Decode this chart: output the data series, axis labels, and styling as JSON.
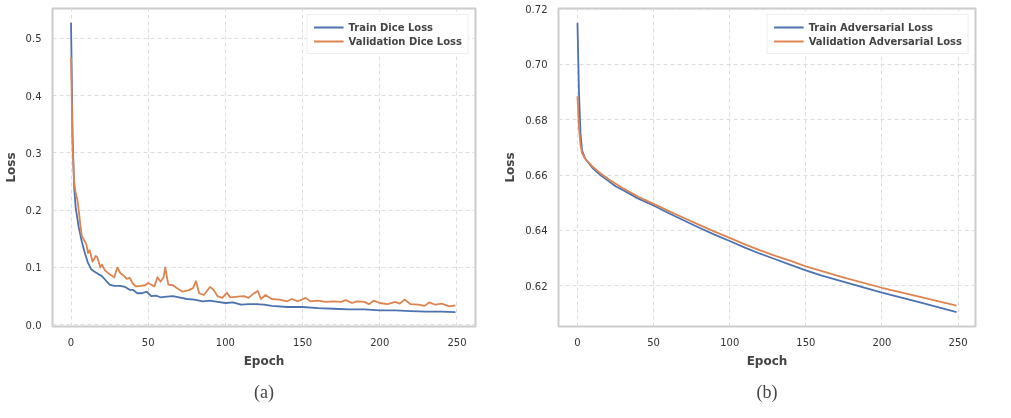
{
  "chart_data": [
    {
      "type": "line",
      "xlabel": "Epoch",
      "ylabel": "Loss",
      "xlim": [
        -12,
        262
      ],
      "ylim": [
        -0.003,
        0.552
      ],
      "xticks": [
        0,
        50,
        100,
        150,
        200,
        250
      ],
      "yticks": [
        {
          "value": 0,
          "label": "0.0"
        },
        0.1,
        0.2,
        0.3,
        0.4,
        0.5
      ],
      "grid": true,
      "legend": "top right",
      "annotations": [
        "(a)"
      ],
      "series": [
        {
          "name": "Train Dice Loss",
          "color": "#4c72b0",
          "x": [
            0,
            1,
            2,
            3,
            5,
            7,
            9,
            11,
            13,
            15,
            18,
            20,
            22,
            25,
            28,
            32,
            35,
            38,
            40,
            43,
            46,
            49,
            52,
            55,
            58,
            62,
            66,
            70,
            75,
            80,
            85,
            90,
            95,
            100,
            105,
            110,
            115,
            120,
            125,
            130,
            140,
            150,
            160,
            170,
            180,
            190,
            200,
            210,
            220,
            230,
            240,
            249
          ],
          "values": [
            0.527,
            0.33,
            0.24,
            0.205,
            0.17,
            0.145,
            0.125,
            0.108,
            0.097,
            0.093,
            0.088,
            0.085,
            0.079,
            0.07,
            0.068,
            0.068,
            0.066,
            0.061,
            0.061,
            0.055,
            0.055,
            0.058,
            0.05,
            0.051,
            0.048,
            0.049,
            0.05,
            0.048,
            0.045,
            0.044,
            0.041,
            0.042,
            0.04,
            0.038,
            0.039,
            0.035,
            0.036,
            0.036,
            0.035,
            0.033,
            0.031,
            0.031,
            0.029,
            0.028,
            0.027,
            0.027,
            0.025,
            0.025,
            0.024,
            0.023,
            0.023,
            0.022
          ]
        },
        {
          "name": "Validation Dice Loss",
          "color": "#dd8452",
          "x": [
            0,
            1,
            2,
            3,
            4,
            5,
            6,
            7,
            8,
            10,
            11,
            12,
            14,
            16,
            17,
            19,
            20,
            22,
            25,
            28,
            30,
            32,
            34,
            36,
            38,
            40,
            42,
            45,
            48,
            50,
            52,
            54,
            56,
            58,
            60,
            61,
            63,
            66,
            68,
            72,
            76,
            79,
            81,
            83,
            86,
            90,
            92,
            95,
            98,
            101,
            103,
            108,
            112,
            115,
            118,
            121,
            123,
            126,
            130,
            135,
            140,
            143,
            147,
            152,
            155,
            160,
            165,
            170,
            175,
            178,
            182,
            185,
            190,
            193,
            196,
            200,
            205,
            210,
            213,
            216,
            220,
            225,
            229,
            232,
            236,
            240,
            245,
            249
          ],
          "values": [
            0.467,
            0.31,
            0.25,
            0.23,
            0.22,
            0.2,
            0.175,
            0.155,
            0.15,
            0.14,
            0.125,
            0.13,
            0.11,
            0.12,
            0.118,
            0.1,
            0.105,
            0.095,
            0.088,
            0.083,
            0.1,
            0.09,
            0.086,
            0.08,
            0.082,
            0.072,
            0.067,
            0.068,
            0.069,
            0.073,
            0.07,
            0.067,
            0.083,
            0.075,
            0.083,
            0.1,
            0.07,
            0.069,
            0.065,
            0.058,
            0.06,
            0.064,
            0.076,
            0.055,
            0.052,
            0.066,
            0.062,
            0.05,
            0.047,
            0.056,
            0.048,
            0.049,
            0.05,
            0.047,
            0.054,
            0.059,
            0.045,
            0.052,
            0.045,
            0.044,
            0.041,
            0.045,
            0.041,
            0.047,
            0.041,
            0.042,
            0.04,
            0.041,
            0.04,
            0.043,
            0.038,
            0.041,
            0.04,
            0.036,
            0.042,
            0.038,
            0.036,
            0.04,
            0.037,
            0.044,
            0.036,
            0.035,
            0.033,
            0.039,
            0.035,
            0.037,
            0.032,
            0.034
          ]
        }
      ]
    },
    {
      "type": "line",
      "xlabel": "Epoch",
      "ylabel": "Loss",
      "xlim": [
        -12.45,
        261.45
      ],
      "ylim": [
        0.6053,
        0.7202
      ],
      "xticks": [
        0,
        50,
        100,
        150,
        200,
        250
      ],
      "yticks": [
        0.62,
        0.64,
        0.66,
        0.68,
        {
          "value": 0.7,
          "label": "0.70"
        },
        0.72
      ],
      "grid": true,
      "legend": "top right",
      "annotations": [
        "(b)"
      ],
      "series": [
        {
          "name": "Train Adversarial Loss",
          "color": "#4c72b0",
          "x": [
            0,
            1,
            2,
            3,
            5,
            10,
            15,
            20,
            25,
            30,
            40,
            50,
            60,
            70,
            80,
            90,
            100,
            110,
            120,
            130,
            140,
            150,
            160,
            175,
            200,
            225,
            249
          ],
          "values": [
            0.715,
            0.69,
            0.675,
            0.669,
            0.666,
            0.6625,
            0.66,
            0.658,
            0.656,
            0.6545,
            0.6515,
            0.649,
            0.6462,
            0.6436,
            0.641,
            0.6385,
            0.6362,
            0.6338,
            0.6316,
            0.6296,
            0.6276,
            0.6256,
            0.6238,
            0.6214,
            0.6175,
            0.614,
            0.6105
          ]
        },
        {
          "name": "Validation Adversarial Loss",
          "color": "#dd8452",
          "x": [
            0,
            1,
            2,
            3,
            5,
            10,
            15,
            20,
            30,
            40,
            50,
            60,
            70,
            80,
            90,
            100,
            110,
            120,
            130,
            140,
            150,
            175,
            200,
            225,
            249
          ],
          "values": [
            0.6885,
            0.677,
            0.671,
            0.668,
            0.666,
            0.663,
            0.6607,
            0.6587,
            0.6552,
            0.6522,
            0.6496,
            0.647,
            0.6445,
            0.642,
            0.6396,
            0.6373,
            0.635,
            0.6328,
            0.6308,
            0.629,
            0.627,
            0.623,
            0.6193,
            0.616,
            0.6128
          ]
        }
      ]
    }
  ]
}
